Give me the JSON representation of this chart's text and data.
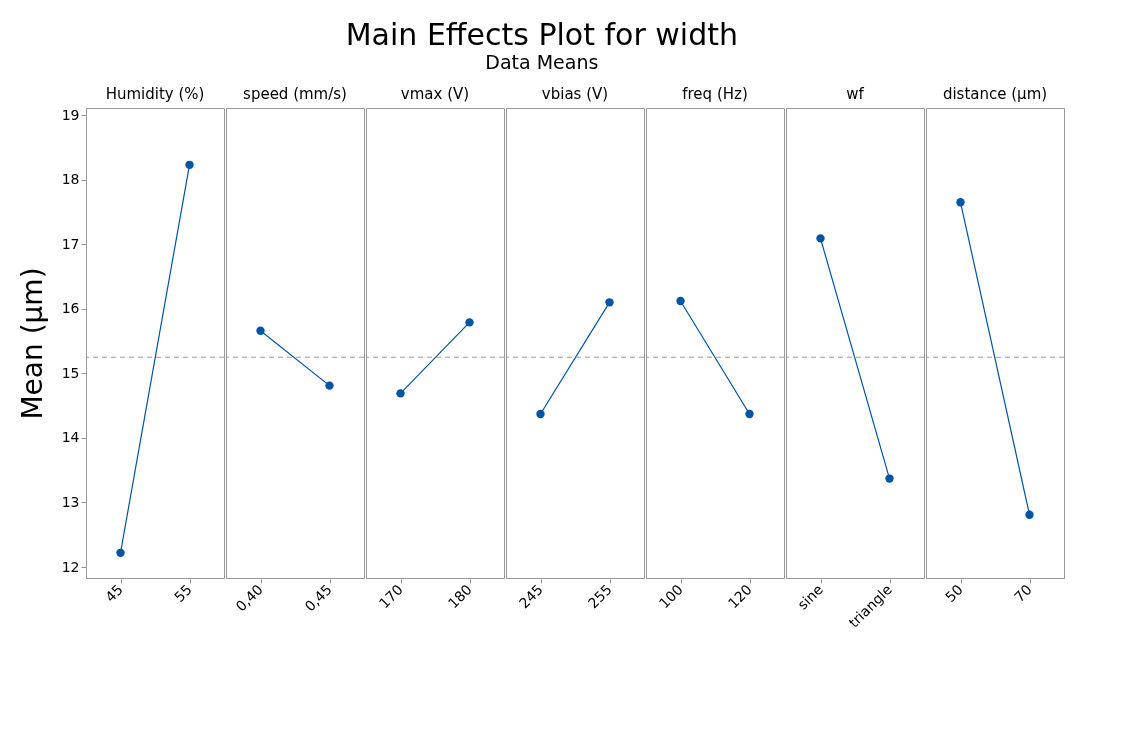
{
  "chart_data": [
    {
      "type": "other",
      "title": "Main Effects Plot for width",
      "subtitle": "Data Means"
    },
    {
      "type": "line",
      "title": "Humidity (%)",
      "ylabel": "Mean (μm)",
      "categories": [
        "45",
        "55"
      ],
      "values": [
        12.22,
        18.23
      ],
      "color": "#0054a6",
      "marker": "circle",
      "line_style": "solid",
      "ylim": [
        11.83,
        19.11
      ],
      "yticks": [
        12,
        13,
        14,
        15,
        16,
        17,
        18,
        19
      ],
      "grid": false,
      "ref_lines": [
        {
          "axis": "y",
          "value": 15.25,
          "color": "#999999",
          "line_style": "dashed"
        }
      ]
    },
    {
      "type": "line",
      "title": "speed (mm/s)",
      "categories": [
        "0,40",
        "0,45"
      ],
      "values": [
        15.66,
        14.81
      ],
      "color": "#0054a6",
      "marker": "circle",
      "line_style": "solid",
      "ylim": [
        11.83,
        19.11
      ],
      "yticks": [
        12,
        13,
        14,
        15,
        16,
        17,
        18,
        19
      ],
      "tick_labels": "x",
      "grid": false,
      "ref_lines": [
        {
          "axis": "y",
          "value": 15.25,
          "color": "#999999",
          "line_style": "dashed"
        }
      ]
    },
    {
      "type": "line",
      "title": "vmax (V)",
      "categories": [
        "170",
        "180"
      ],
      "values": [
        14.69,
        15.79
      ],
      "color": "#0054a6",
      "marker": "circle",
      "line_style": "solid",
      "ylim": [
        11.83,
        19.11
      ],
      "yticks": [
        12,
        13,
        14,
        15,
        16,
        17,
        18,
        19
      ],
      "tick_labels": "x",
      "grid": false,
      "ref_lines": [
        {
          "axis": "y",
          "value": 15.25,
          "color": "#999999",
          "line_style": "dashed"
        }
      ]
    },
    {
      "type": "line",
      "title": "vbias (V)",
      "categories": [
        "245",
        "255"
      ],
      "values": [
        14.37,
        16.1
      ],
      "color": "#0054a6",
      "marker": "circle",
      "line_style": "solid",
      "ylim": [
        11.83,
        19.11
      ],
      "yticks": [
        12,
        13,
        14,
        15,
        16,
        17,
        18,
        19
      ],
      "tick_labels": "x",
      "grid": false,
      "ref_lines": [
        {
          "axis": "y",
          "value": 15.25,
          "color": "#999999",
          "line_style": "dashed"
        }
      ]
    },
    {
      "type": "line",
      "title": "freq (Hz)",
      "categories": [
        "100",
        "120"
      ],
      "values": [
        16.12,
        14.37
      ],
      "color": "#0054a6",
      "marker": "circle",
      "line_style": "solid",
      "ylim": [
        11.83,
        19.11
      ],
      "yticks": [
        12,
        13,
        14,
        15,
        16,
        17,
        18,
        19
      ],
      "tick_labels": "x",
      "grid": false,
      "ref_lines": [
        {
          "axis": "y",
          "value": 15.25,
          "color": "#999999",
          "line_style": "dashed"
        }
      ]
    },
    {
      "type": "line",
      "title": "wf",
      "categories": [
        "sine",
        "triangle"
      ],
      "values": [
        17.09,
        13.37
      ],
      "color": "#0054a6",
      "marker": "circle",
      "line_style": "solid",
      "ylim": [
        11.83,
        19.11
      ],
      "yticks": [
        12,
        13,
        14,
        15,
        16,
        17,
        18,
        19
      ],
      "tick_labels": "x",
      "grid": false,
      "ref_lines": [
        {
          "axis": "y",
          "value": 15.25,
          "color": "#999999",
          "line_style": "dashed"
        }
      ]
    },
    {
      "type": "line",
      "title": "distance (μm)",
      "categories": [
        "50",
        "70"
      ],
      "values": [
        17.65,
        12.81
      ],
      "color": "#0054a6",
      "marker": "circle",
      "line_style": "solid",
      "ylim": [
        11.83,
        19.11
      ],
      "yticks": [
        12,
        13,
        14,
        15,
        16,
        17,
        18,
        19
      ],
      "tick_labels": "x",
      "grid": false,
      "ref_lines": [
        {
          "axis": "y",
          "value": 15.25,
          "color": "#999999",
          "line_style": "dashed"
        }
      ]
    }
  ]
}
